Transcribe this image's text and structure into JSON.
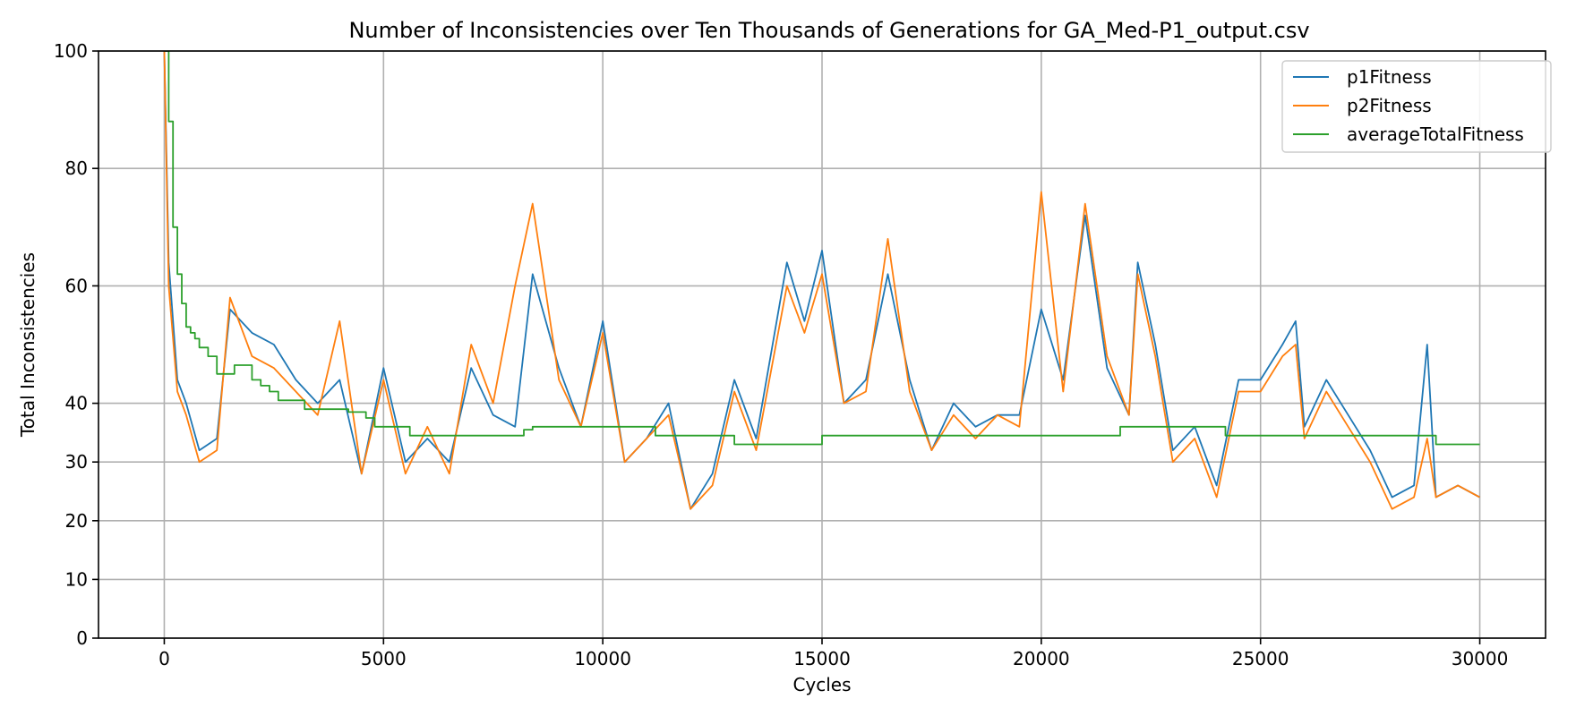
{
  "chart_data": {
    "type": "line",
    "title": "Number of Inconsistencies over Ten Thousands of Generations for GA_Med-P1_output.csv",
    "xlabel": "Cycles",
    "ylabel": "Total Inconsistencies",
    "xlim": [
      -1500,
      31500
    ],
    "ylim": [
      0,
      100
    ],
    "xticks": [
      0,
      5000,
      10000,
      15000,
      20000,
      25000,
      30000
    ],
    "yticks": [
      0,
      10,
      20,
      30,
      40,
      60,
      80,
      100
    ],
    "grid": true,
    "legend": "top-right",
    "colors": {
      "p1Fitness": "#1f77b4",
      "p2Fitness": "#ff7f0e",
      "averageTotalFitness": "#2ca02c"
    },
    "series": [
      {
        "name": "p1Fitness",
        "x": [
          0,
          100,
          300,
          500,
          800,
          1200,
          1500,
          2000,
          2500,
          3000,
          3500,
          4000,
          4500,
          5000,
          5500,
          6000,
          6500,
          7000,
          7500,
          8000,
          8400,
          9000,
          9500,
          10000,
          10500,
          11000,
          11500,
          12000,
          12500,
          13000,
          13500,
          14200,
          14600,
          15000,
          15500,
          16000,
          16500,
          17000,
          17500,
          18000,
          18500,
          19000,
          19500,
          20000,
          20500,
          21000,
          21500,
          22000,
          22200,
          22600,
          23000,
          23500,
          24000,
          24500,
          25000,
          25500,
          25800,
          26000,
          26500,
          27000,
          27500,
          28000,
          28500,
          28800,
          29000,
          29500,
          30000
        ],
        "y": [
          100,
          64,
          44,
          40,
          32,
          34,
          56,
          52,
          50,
          44,
          40,
          44,
          28,
          46,
          30,
          34,
          30,
          46,
          38,
          36,
          62,
          46,
          36,
          54,
          30,
          34,
          40,
          22,
          28,
          44,
          34,
          64,
          54,
          66,
          40,
          44,
          62,
          44,
          32,
          40,
          36,
          38,
          38,
          56,
          44,
          72,
          46,
          38,
          64,
          50,
          32,
          36,
          26,
          44,
          44,
          50,
          54,
          36,
          44,
          38,
          32,
          24,
          26,
          50,
          24,
          26,
          24
        ]
      },
      {
        "name": "p2Fitness",
        "x": [
          0,
          100,
          300,
          500,
          800,
          1200,
          1500,
          2000,
          2500,
          3000,
          3500,
          4000,
          4500,
          5000,
          5500,
          6000,
          6500,
          7000,
          7500,
          8000,
          8400,
          9000,
          9500,
          10000,
          10500,
          11000,
          11500,
          12000,
          12500,
          13000,
          13500,
          14200,
          14600,
          15000,
          15500,
          16000,
          16500,
          17000,
          17500,
          18000,
          18500,
          19000,
          19500,
          20000,
          20500,
          21000,
          21500,
          22000,
          22200,
          22600,
          23000,
          23500,
          24000,
          24500,
          25000,
          25500,
          25800,
          26000,
          26500,
          27000,
          27500,
          28000,
          28500,
          28800,
          29000,
          29500,
          30000
        ],
        "y": [
          100,
          60,
          42,
          38,
          30,
          32,
          58,
          48,
          46,
          42,
          38,
          54,
          28,
          44,
          28,
          36,
          28,
          50,
          40,
          60,
          74,
          44,
          36,
          52,
          30,
          34,
          38,
          22,
          26,
          42,
          32,
          60,
          52,
          62,
          40,
          42,
          68,
          42,
          32,
          38,
          34,
          38,
          36,
          76,
          42,
          74,
          48,
          38,
          62,
          48,
          30,
          34,
          24,
          42,
          42,
          48,
          50,
          34,
          42,
          36,
          30,
          22,
          24,
          34,
          24,
          26,
          24
        ]
      },
      {
        "name": "averageTotalFitness",
        "x": [
          0,
          100,
          200,
          300,
          400,
          500,
          600,
          700,
          800,
          1000,
          1200,
          1400,
          1600,
          1800,
          2000,
          2200,
          2400,
          2600,
          3000,
          3200,
          3600,
          4000,
          4200,
          4600,
          4800,
          5000,
          5400,
          5600,
          6000,
          7000,
          8000,
          8200,
          8400,
          9000,
          10000,
          11000,
          11200,
          12000,
          12800,
          13000,
          14000,
          14900,
          15000,
          16000,
          17000,
          18000,
          19000,
          20000,
          21000,
          21600,
          21800,
          22000,
          23000,
          24000,
          24200,
          25000,
          26000,
          27000,
          28000,
          28800,
          29000,
          30000
        ],
        "y": [
          100,
          88,
          70,
          62,
          57,
          53,
          52,
          51,
          49.5,
          48,
          45,
          45,
          46.5,
          46.5,
          44,
          43,
          42,
          40.5,
          40.5,
          39,
          39,
          39,
          38.5,
          37.5,
          36,
          36,
          36,
          34.5,
          34.5,
          34.5,
          34.5,
          35.5,
          36,
          36,
          36,
          36,
          34.5,
          34.5,
          34.5,
          33,
          33,
          33,
          34.5,
          34.5,
          34.5,
          34.5,
          34.5,
          34.5,
          34.5,
          34.5,
          36,
          36,
          36,
          36,
          34.5,
          34.5,
          34.5,
          34.5,
          34.5,
          34.5,
          33,
          33
        ]
      }
    ]
  }
}
